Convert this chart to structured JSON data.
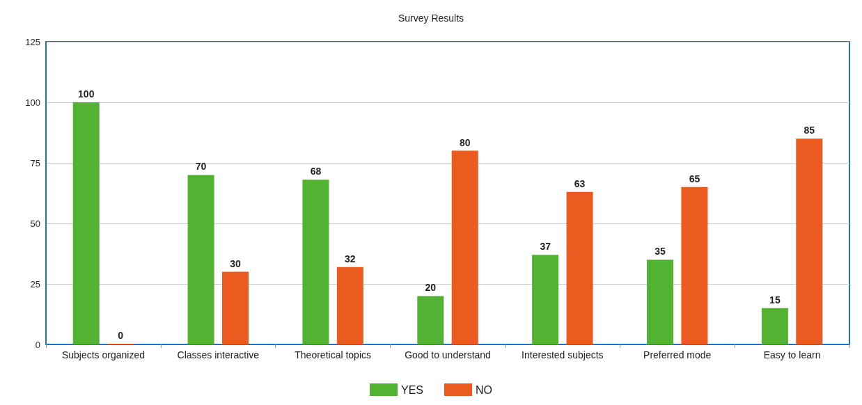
{
  "chart_data": {
    "type": "bar",
    "title": "Survey Results",
    "categories": [
      "Subjects organized",
      "Classes interactive",
      "Theoretical topics",
      "Good to understand",
      "Interested subjects",
      "Preferred mode",
      "Easy to learn"
    ],
    "series": [
      {
        "name": "YES",
        "color": "#52b232",
        "values": [
          100,
          70,
          68,
          20,
          37,
          35,
          15
        ]
      },
      {
        "name": "NO",
        "color": "#eb5a1e",
        "values": [
          0,
          30,
          32,
          80,
          63,
          65,
          85
        ]
      }
    ],
    "ylim": [
      0,
      125
    ],
    "yticks": [
      0,
      25,
      50,
      75,
      100,
      125
    ],
    "grid": "y",
    "legend": "bottom",
    "data_labels": true
  }
}
